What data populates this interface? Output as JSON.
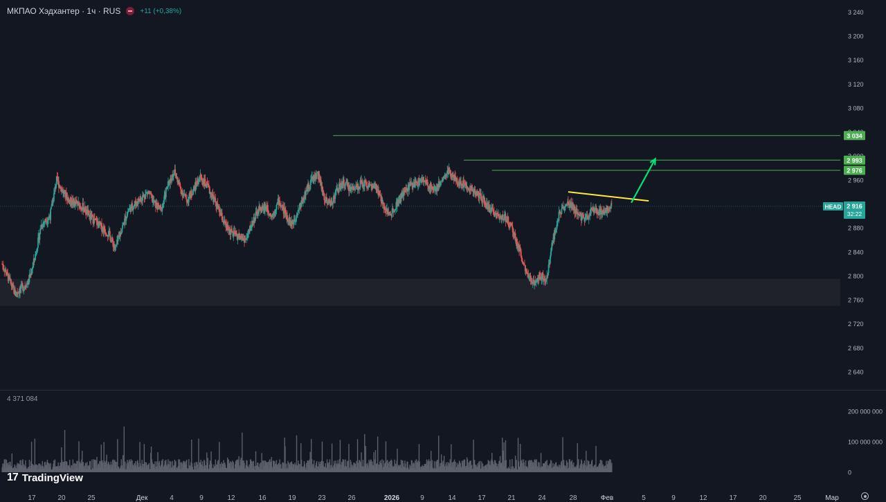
{
  "header": {
    "symbol": "МКПАО Хэдхантер · 1ч · RUS",
    "change": "+11 (+0,38%)"
  },
  "volume_label": "4 371 084",
  "logo": {
    "text": "TradingView",
    "icon": "tradingview-logo-icon"
  },
  "settings_icon": "gear-icon",
  "colors": {
    "up": "#26a69a",
    "down": "#ef5350",
    "bg": "#131722",
    "level": "#4caf50",
    "trend": "#ffeb3b",
    "arrow": "#00e676"
  },
  "chart_data": [
    {
      "type": "candlestick",
      "ylim": [
        2610,
        3260
      ],
      "y_ticks": [
        2640,
        2680,
        2720,
        2760,
        2800,
        2840,
        2880,
        2920,
        2960,
        3000,
        3040,
        3080,
        3120,
        3160,
        3200,
        3240
      ],
      "y_tick_labels": [
        "2 640",
        "2 680",
        "2 720",
        "2 760",
        "2 800",
        "2 840",
        "2 880",
        "2 920",
        "2 960",
        "3 000",
        "3 040",
        "3 080",
        "3 120",
        "3 160",
        "3 200",
        "3 240"
      ],
      "x_labels": [
        "17",
        "20",
        "25",
        "Дек",
        "4",
        "9",
        "12",
        "16",
        "19",
        "23",
        "26",
        "2026",
        "9",
        "14",
        "17",
        "21",
        "24",
        "28",
        "Фев",
        "5",
        "9",
        "12",
        "17",
        "20",
        "25",
        "Мар"
      ],
      "price_path": [
        [
          0,
          2820
        ],
        [
          3,
          2795
        ],
        [
          6,
          2770
        ],
        [
          9,
          2780
        ],
        [
          12,
          2790
        ],
        [
          15,
          2830
        ],
        [
          18,
          2885
        ],
        [
          22,
          2900
        ],
        [
          25,
          2960
        ],
        [
          28,
          2940
        ],
        [
          31,
          2925
        ],
        [
          34,
          2920
        ],
        [
          37,
          2915
        ],
        [
          40,
          2900
        ],
        [
          43,
          2890
        ],
        [
          46,
          2880
        ],
        [
          49,
          2870
        ],
        [
          52,
          2845
        ],
        [
          55,
          2880
        ],
        [
          58,
          2910
        ],
        [
          61,
          2920
        ],
        [
          64,
          2930
        ],
        [
          67,
          2940
        ],
        [
          70,
          2920
        ],
        [
          73,
          2910
        ],
        [
          76,
          2950
        ],
        [
          79,
          2975
        ],
        [
          82,
          2945
        ],
        [
          85,
          2925
        ],
        [
          88,
          2945
        ],
        [
          91,
          2965
        ],
        [
          94,
          2950
        ],
        [
          97,
          2930
        ],
        [
          100,
          2905
        ],
        [
          103,
          2880
        ],
        [
          106,
          2870
        ],
        [
          109,
          2865
        ],
        [
          112,
          2860
        ],
        [
          115,
          2890
        ],
        [
          118,
          2910
        ],
        [
          121,
          2915
        ],
        [
          124,
          2900
        ],
        [
          127,
          2925
        ],
        [
          130,
          2905
        ],
        [
          133,
          2885
        ],
        [
          136,
          2910
        ],
        [
          139,
          2935
        ],
        [
          142,
          2960
        ],
        [
          145,
          2970
        ],
        [
          148,
          2930
        ],
        [
          151,
          2920
        ],
        [
          154,
          2945
        ],
        [
          157,
          2955
        ],
        [
          160,
          2945
        ],
        [
          163,
          2950
        ],
        [
          166,
          2955
        ],
        [
          169,
          2950
        ],
        [
          172,
          2945
        ],
        [
          175,
          2920
        ],
        [
          178,
          2900
        ],
        [
          181,
          2920
        ],
        [
          184,
          2935
        ],
        [
          187,
          2950
        ],
        [
          190,
          2955
        ],
        [
          193,
          2960
        ],
        [
          196,
          2950
        ],
        [
          199,
          2945
        ],
        [
          202,
          2960
        ],
        [
          205,
          2975
        ],
        [
          208,
          2960
        ],
        [
          211,
          2955
        ],
        [
          214,
          2950
        ],
        [
          217,
          2940
        ],
        [
          220,
          2930
        ],
        [
          223,
          2915
        ],
        [
          226,
          2905
        ],
        [
          229,
          2900
        ],
        [
          232,
          2895
        ],
        [
          235,
          2870
        ],
        [
          238,
          2840
        ],
        [
          241,
          2800
        ],
        [
          244,
          2790
        ],
        [
          247,
          2800
        ],
        [
          250,
          2795
        ],
        [
          253,
          2860
        ],
        [
          256,
          2905
        ],
        [
          259,
          2920
        ],
        [
          262,
          2915
        ],
        [
          265,
          2900
        ],
        [
          268,
          2895
        ],
        [
          271,
          2910
        ],
        [
          274,
          2905
        ],
        [
          277,
          2910
        ],
        [
          280,
          2916
        ]
      ],
      "x_range": [
        -1,
        385
      ],
      "support_zone": [
        2750,
        2795
      ],
      "levels": [
        {
          "value": 3034,
          "label": "3 034",
          "from": 152
        },
        {
          "value": 2993,
          "label": "2 993",
          "from": 212
        },
        {
          "value": 2976,
          "label": "2 976",
          "from": 225
        }
      ],
      "trendline": [
        [
          260,
          2940
        ],
        [
          297,
          2925
        ]
      ],
      "arrow": [
        [
          289,
          2922
        ],
        [
          300,
          2995
        ]
      ],
      "last_price": {
        "value": 2916,
        "label": "2 916",
        "timer": "32:22",
        "ticker": "HEAD"
      }
    },
    {
      "type": "bar",
      "name": "volume",
      "ylim": [
        0,
        220000000
      ],
      "y_ticks": [
        0,
        100000000,
        200000000
      ],
      "y_tick_labels": [
        "0",
        "100 000 000",
        "200 000 000"
      ]
    }
  ]
}
